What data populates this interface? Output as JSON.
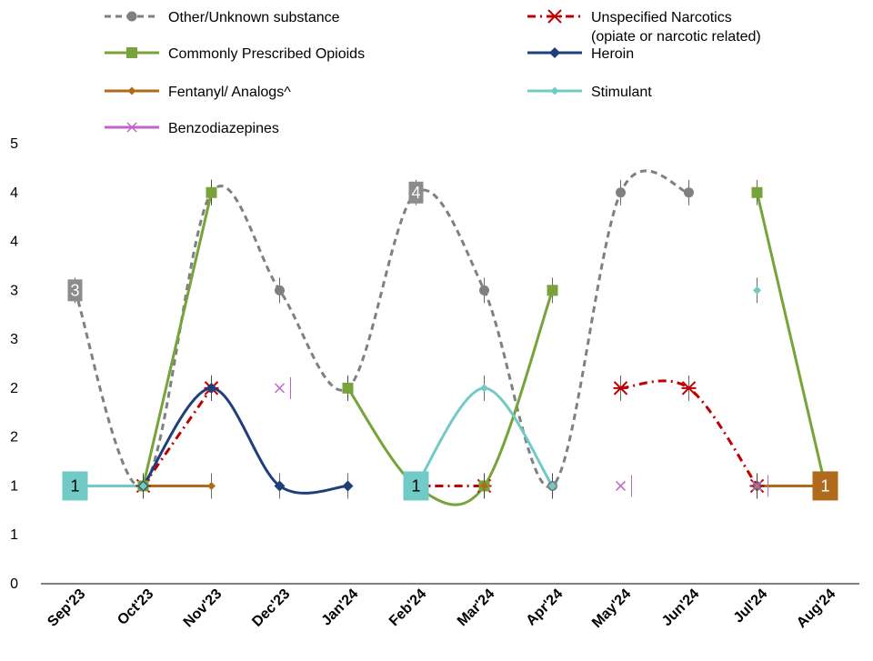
{
  "chart_data": {
    "type": "line",
    "categories": [
      "Sep'23",
      "Oct'23",
      "Nov'23",
      "Dec'23",
      "Jan'24",
      "Feb'24",
      "Mar'24",
      "Apr'24",
      "May'24",
      "Jun'24",
      "Jul'24",
      "Aug'24"
    ],
    "y_ticks": [
      "0",
      "1",
      "1",
      "2",
      "2",
      "3",
      "3",
      "4",
      "4",
      "5"
    ],
    "ylim": [
      0,
      4.5
    ],
    "grid": false,
    "legend_position": "top",
    "series": [
      {
        "name": "Other/Unknown substance",
        "color": "#808080",
        "style": "dashed",
        "marker": "circle",
        "values": [
          3,
          1,
          4,
          3,
          2,
          4,
          3,
          1,
          4,
          4,
          null,
          null
        ],
        "labels": [
          "3",
          null,
          null,
          null,
          null,
          "4",
          null,
          null,
          null,
          null,
          null,
          null
        ]
      },
      {
        "name": "Unspecified Narcotics (opiate or narcotic related)",
        "color": "#c00000",
        "style": "dashdot",
        "marker": "asterisk",
        "values": [
          null,
          1,
          2,
          null,
          null,
          1,
          1,
          null,
          2,
          2,
          1,
          null
        ]
      },
      {
        "name": "Commonly Prescribed Opioids",
        "color": "#77a33a",
        "style": "solid",
        "marker": "square",
        "values": [
          null,
          1,
          4,
          null,
          2,
          1,
          1,
          3,
          null,
          null,
          4,
          1
        ]
      },
      {
        "name": "Heroin",
        "color": "#1f3f7a",
        "style": "solid",
        "marker": "diamond",
        "values": [
          null,
          1,
          2,
          1,
          1,
          null,
          null,
          null,
          null,
          null,
          1,
          null
        ]
      },
      {
        "name": "Fentanyl/ Analogs^",
        "color": "#b06a1c",
        "style": "solid",
        "marker": "small-diamond",
        "values": [
          null,
          1,
          1,
          null,
          null,
          null,
          1,
          null,
          null,
          null,
          1,
          1
        ],
        "labels": [
          null,
          null,
          null,
          null,
          null,
          null,
          null,
          null,
          null,
          null,
          null,
          "1"
        ]
      },
      {
        "name": "Stimulant",
        "color": "#72cac6",
        "style": "solid",
        "marker": "small-diamond",
        "values": [
          1,
          1,
          null,
          null,
          null,
          1,
          2,
          1,
          null,
          null,
          3,
          null
        ],
        "labels": [
          "1",
          null,
          null,
          null,
          null,
          "1",
          null,
          null,
          null,
          null,
          null,
          null
        ]
      },
      {
        "name": "Benzodiazepines",
        "color": "#c064c8",
        "style": "none",
        "marker": "x",
        "values": [
          null,
          null,
          null,
          2,
          null,
          null,
          null,
          null,
          1,
          null,
          1,
          null
        ]
      }
    ]
  }
}
